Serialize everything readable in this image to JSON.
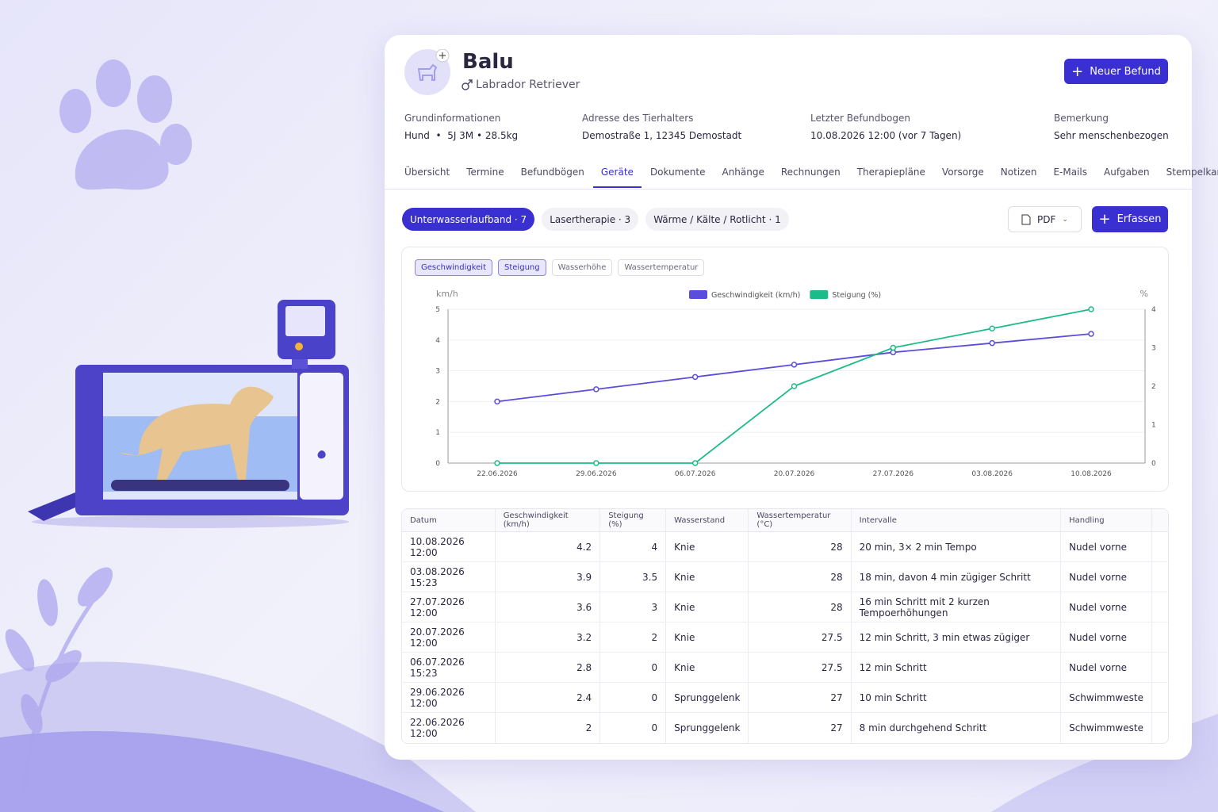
{
  "header": {
    "name": "Balu",
    "breed": "Labrador Retriever",
    "new_button": "Neuer Befund"
  },
  "info": [
    {
      "label": "Grundinformationen",
      "value": "Hund  •  5J 3M • 28.5kg"
    },
    {
      "label": "Adresse des Tierhalters",
      "value": "Demostraße 1, 12345 Demostadt"
    },
    {
      "label": "Letzter Befundbogen",
      "value": "10.08.2026 12:00 (vor 7 Tagen)"
    },
    {
      "label": "Bemerkung",
      "value": "Sehr menschenbezogen"
    }
  ],
  "tabs": {
    "items": [
      "Übersicht",
      "Termine",
      "Befundbögen",
      "Geräte",
      "Dokumente",
      "Anhänge",
      "Rechnungen",
      "Therapiepläne",
      "Vorsorge",
      "Notizen",
      "E-Mails",
      "Aufgaben",
      "Stempelkarte"
    ],
    "active": 3
  },
  "devices": {
    "items": [
      "Unterwasserlaufband · 7",
      "Lasertherapie · 3",
      "Wärme / Kälte / Rotlicht · 1"
    ],
    "active": 0
  },
  "actions": {
    "pdf": "PDF",
    "add": "Erfassen"
  },
  "chart_toggles": {
    "items": [
      "Geschwindigkeit",
      "Steigung",
      "Wasserhöhe",
      "Wassertemperatur"
    ],
    "active": [
      0,
      1
    ]
  },
  "chart_data": {
    "type": "line",
    "y_label": "km/h",
    "y2_label": "%",
    "categories": [
      "22.06.2026",
      "29.06.2026",
      "06.07.2026",
      "20.07.2026",
      "27.07.2026",
      "03.08.2026",
      "10.08.2026"
    ],
    "series": [
      {
        "name": "Geschwindigkeit (km/h)",
        "color": "#5b4ddb",
        "values": [
          2,
          2.4,
          2.8,
          3.2,
          3.6,
          3.9,
          4.2
        ]
      },
      {
        "name": "Steigung (%)",
        "color": "#1dbb8a",
        "axis": "y2",
        "values": [
          0,
          0,
          0,
          2,
          3,
          3.5,
          4
        ]
      }
    ],
    "ylim": [
      0,
      5
    ],
    "yticks": [
      0,
      1,
      2,
      3,
      4,
      5
    ],
    "y2lim": [
      0,
      4
    ],
    "y2ticks": [
      0,
      1,
      2,
      3,
      4
    ],
    "grid": true,
    "legend": "top"
  },
  "table": {
    "columns": [
      "Datum",
      "Geschwindigkeit (km/h)",
      "Steigung (%)",
      "Wasserstand",
      "Wassertemperatur (°C)",
      "Intervalle",
      "Handling"
    ],
    "rows": [
      [
        "10.08.2026 12:00",
        4.2,
        4,
        "Knie",
        28,
        "20 min, 3× 2 min Tempo",
        "Nudel vorne"
      ],
      [
        "03.08.2026 15:23",
        3.9,
        3.5,
        "Knie",
        28,
        "18 min, davon 4 min zügiger Schritt",
        "Nudel vorne"
      ],
      [
        "27.07.2026 12:00",
        3.6,
        3,
        "Knie",
        28,
        "16 min Schritt mit 2 kurzen Tempoerhöhungen",
        "Nudel vorne"
      ],
      [
        "20.07.2026 12:00",
        3.2,
        2,
        "Knie",
        27.5,
        "12 min Schritt, 3 min etwas zügiger",
        "Nudel vorne"
      ],
      [
        "06.07.2026 15:23",
        2.8,
        0,
        "Knie",
        27.5,
        "12 min Schritt",
        "Nudel vorne"
      ],
      [
        "29.06.2026 12:00",
        2.4,
        0,
        "Sprunggelenk",
        27,
        "10 min Schritt",
        "Schwimmweste"
      ],
      [
        "22.06.2026 12:00",
        2,
        0,
        "Sprunggelenk",
        27,
        "8 min durchgehend Schritt",
        "Schwimmweste"
      ]
    ]
  }
}
